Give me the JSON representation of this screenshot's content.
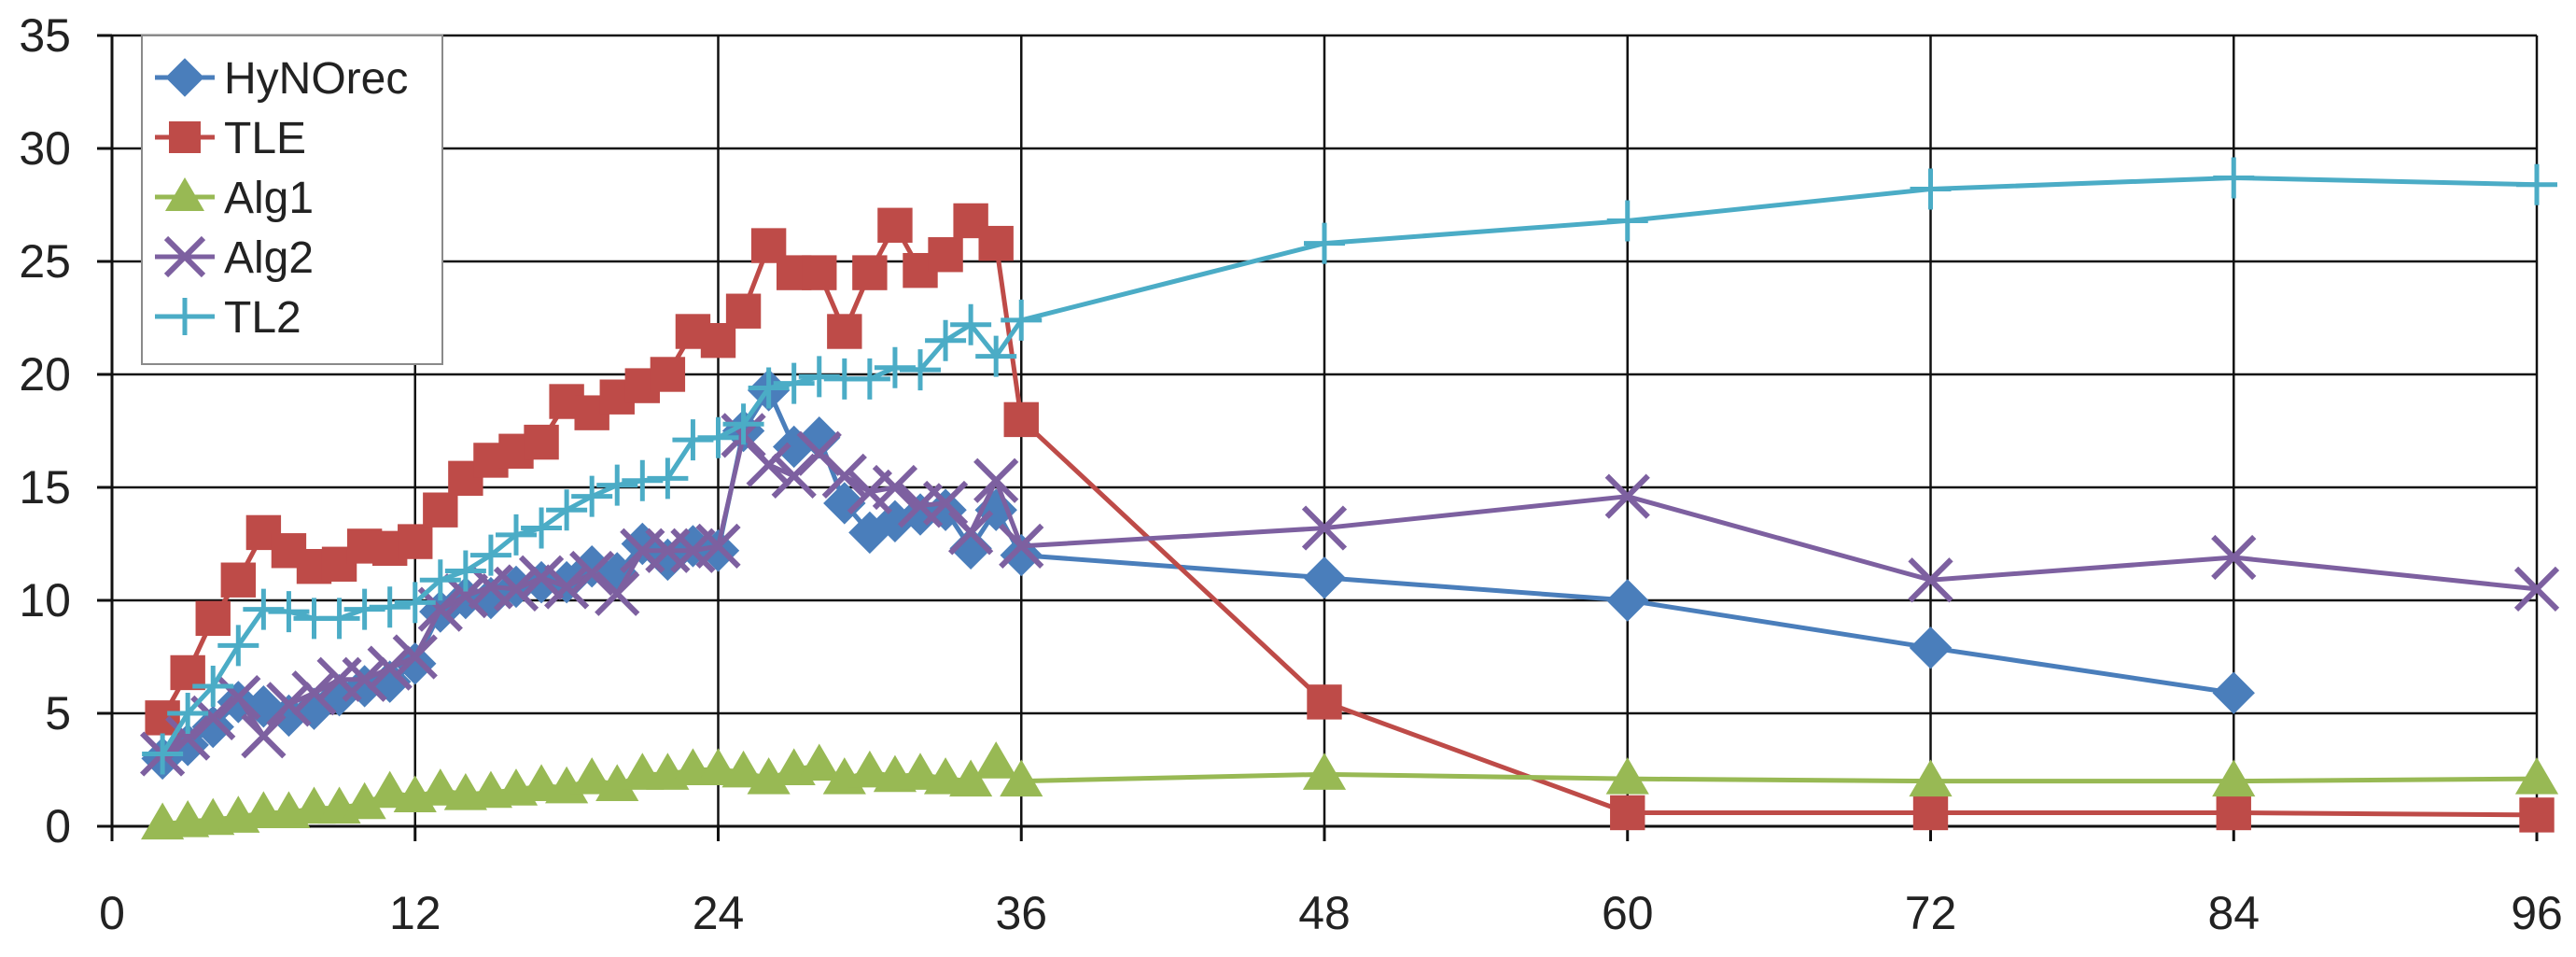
{
  "chart_data": {
    "type": "line",
    "title": "",
    "xlabel": "",
    "ylabel": "",
    "xlim": [
      0,
      96
    ],
    "ylim": [
      0,
      35
    ],
    "x_ticks": [
      "0",
      "12",
      "24",
      "36",
      "48",
      "60",
      "72",
      "84",
      "96"
    ],
    "y_ticks": [
      "0",
      "5",
      "10",
      "15",
      "20",
      "25",
      "30",
      "35"
    ],
    "grid": true,
    "legend_position": "top-left",
    "series": [
      {
        "name": "HyNOrec",
        "color": "#4a7ebb",
        "marker": "diamond",
        "points": [
          [
            2,
            3.0
          ],
          [
            3,
            3.6
          ],
          [
            4,
            4.4
          ],
          [
            5,
            5.5
          ],
          [
            6,
            5.3
          ],
          [
            7,
            4.9
          ],
          [
            8,
            5.2
          ],
          [
            9,
            5.8
          ],
          [
            10,
            6.2
          ],
          [
            11,
            6.4
          ],
          [
            12,
            7.2
          ],
          [
            13,
            9.5
          ],
          [
            14,
            10.1
          ],
          [
            15,
            10.1
          ],
          [
            16,
            10.6
          ],
          [
            17,
            10.8
          ],
          [
            18,
            10.8
          ],
          [
            19,
            11.5
          ],
          [
            20,
            11.2
          ],
          [
            21,
            12.5
          ],
          [
            22,
            11.8
          ],
          [
            23,
            12.4
          ],
          [
            24,
            12.2
          ],
          [
            25,
            17.5
          ],
          [
            26,
            19.3
          ],
          [
            27,
            16.8
          ],
          [
            28,
            17.2
          ],
          [
            29,
            14.3
          ],
          [
            30,
            13.0
          ],
          [
            31,
            13.5
          ],
          [
            32,
            13.8
          ],
          [
            33,
            14.0
          ],
          [
            34,
            12.3
          ],
          [
            35,
            14.0
          ],
          [
            36,
            12.0
          ],
          [
            48,
            11.0
          ],
          [
            60,
            10.0
          ],
          [
            72,
            7.9
          ],
          [
            84,
            5.9
          ]
        ]
      },
      {
        "name": "TLE",
        "color": "#be4b48",
        "marker": "square",
        "points": [
          [
            2,
            4.8
          ],
          [
            3,
            6.8
          ],
          [
            4,
            9.2
          ],
          [
            5,
            10.9
          ],
          [
            6,
            13.0
          ],
          [
            7,
            12.2
          ],
          [
            8,
            11.5
          ],
          [
            9,
            11.6
          ],
          [
            10,
            12.4
          ],
          [
            11,
            12.3
          ],
          [
            12,
            12.6
          ],
          [
            13,
            14.0
          ],
          [
            14,
            15.4
          ],
          [
            15,
            16.2
          ],
          [
            16,
            16.6
          ],
          [
            17,
            17.0
          ],
          [
            18,
            18.8
          ],
          [
            19,
            18.3
          ],
          [
            20,
            19.0
          ],
          [
            21,
            19.5
          ],
          [
            22,
            20.0
          ],
          [
            23,
            21.9
          ],
          [
            24,
            21.5
          ],
          [
            25,
            22.8
          ],
          [
            26,
            25.7
          ],
          [
            27,
            24.5
          ],
          [
            28,
            24.5
          ],
          [
            29,
            21.9
          ],
          [
            30,
            24.5
          ],
          [
            31,
            26.6
          ],
          [
            32,
            24.6
          ],
          [
            33,
            25.3
          ],
          [
            34,
            26.8
          ],
          [
            35,
            25.8
          ],
          [
            36,
            18.0
          ],
          [
            48,
            5.5
          ],
          [
            60,
            0.6
          ],
          [
            72,
            0.6
          ],
          [
            84,
            0.6
          ],
          [
            96,
            0.5
          ]
        ]
      },
      {
        "name": "Alg1",
        "color": "#98b954",
        "marker": "triangle",
        "points": [
          [
            2,
            0.1
          ],
          [
            3,
            0.2
          ],
          [
            4,
            0.3
          ],
          [
            5,
            0.4
          ],
          [
            6,
            0.6
          ],
          [
            7,
            0.6
          ],
          [
            8,
            0.8
          ],
          [
            9,
            0.8
          ],
          [
            10,
            1.0
          ],
          [
            11,
            1.5
          ],
          [
            12,
            1.3
          ],
          [
            13,
            1.6
          ],
          [
            14,
            1.4
          ],
          [
            15,
            1.5
          ],
          [
            16,
            1.6
          ],
          [
            17,
            1.8
          ],
          [
            18,
            1.7
          ],
          [
            19,
            2.1
          ],
          [
            20,
            1.8
          ],
          [
            21,
            2.3
          ],
          [
            22,
            2.3
          ],
          [
            23,
            2.5
          ],
          [
            24,
            2.5
          ],
          [
            25,
            2.4
          ],
          [
            26,
            2.1
          ],
          [
            27,
            2.5
          ],
          [
            28,
            2.7
          ],
          [
            29,
            2.1
          ],
          [
            30,
            2.4
          ],
          [
            31,
            2.2
          ],
          [
            32,
            2.3
          ],
          [
            33,
            2.1
          ],
          [
            34,
            2.0
          ],
          [
            35,
            2.8
          ],
          [
            36,
            2.0
          ],
          [
            48,
            2.3
          ],
          [
            60,
            2.1
          ],
          [
            72,
            2.0
          ],
          [
            84,
            2.0
          ],
          [
            96,
            2.1
          ]
        ]
      },
      {
        "name": "Alg2",
        "color": "#7d60a0",
        "marker": "x",
        "points": [
          [
            2,
            3.2
          ],
          [
            3,
            3.9
          ],
          [
            4,
            4.8
          ],
          [
            5,
            5.7
          ],
          [
            6,
            4.0
          ],
          [
            7,
            5.4
          ],
          [
            8,
            5.9
          ],
          [
            9,
            6.5
          ],
          [
            10,
            6.5
          ],
          [
            11,
            7.0
          ],
          [
            12,
            7.5
          ],
          [
            13,
            9.6
          ],
          [
            14,
            10.2
          ],
          [
            15,
            10.6
          ],
          [
            16,
            10.5
          ],
          [
            17,
            11.0
          ],
          [
            18,
            10.6
          ],
          [
            19,
            11.2
          ],
          [
            20,
            10.3
          ],
          [
            21,
            12.2
          ],
          [
            22,
            12.2
          ],
          [
            23,
            12.2
          ],
          [
            24,
            12.4
          ],
          [
            25,
            17.3
          ],
          [
            26,
            16.0
          ],
          [
            27,
            15.5
          ],
          [
            28,
            16.5
          ],
          [
            29,
            15.5
          ],
          [
            30,
            14.8
          ],
          [
            31,
            15.0
          ],
          [
            32,
            14.2
          ],
          [
            33,
            14.3
          ],
          [
            34,
            13.0
          ],
          [
            35,
            15.3
          ],
          [
            36,
            12.4
          ],
          [
            48,
            13.2
          ],
          [
            60,
            14.6
          ],
          [
            72,
            10.9
          ],
          [
            84,
            11.9
          ],
          [
            96,
            10.5
          ]
        ]
      },
      {
        "name": "TL2",
        "color": "#4bacc6",
        "marker": "plus",
        "points": [
          [
            2,
            3.2
          ],
          [
            3,
            5.0
          ],
          [
            4,
            6.2
          ],
          [
            5,
            8.0
          ],
          [
            6,
            9.6
          ],
          [
            7,
            9.5
          ],
          [
            8,
            9.2
          ],
          [
            9,
            9.2
          ],
          [
            10,
            9.6
          ],
          [
            11,
            9.7
          ],
          [
            12,
            9.9
          ],
          [
            13,
            10.9
          ],
          [
            14,
            11.3
          ],
          [
            15,
            12.0
          ],
          [
            16,
            12.9
          ],
          [
            17,
            13.2
          ],
          [
            18,
            14.0
          ],
          [
            19,
            14.6
          ],
          [
            20,
            15.1
          ],
          [
            21,
            15.3
          ],
          [
            22,
            15.4
          ],
          [
            23,
            17.1
          ],
          [
            24,
            17.2
          ],
          [
            25,
            17.8
          ],
          [
            26,
            19.4
          ],
          [
            27,
            19.6
          ],
          [
            28,
            19.9
          ],
          [
            29,
            19.8
          ],
          [
            30,
            19.8
          ],
          [
            31,
            20.3
          ],
          [
            32,
            20.2
          ],
          [
            33,
            21.5
          ],
          [
            34,
            22.2
          ],
          [
            35,
            20.8
          ],
          [
            36,
            22.4
          ],
          [
            48,
            25.8
          ],
          [
            60,
            26.8
          ],
          [
            72,
            28.2
          ],
          [
            84,
            28.7
          ],
          [
            96,
            28.4
          ]
        ]
      }
    ]
  }
}
